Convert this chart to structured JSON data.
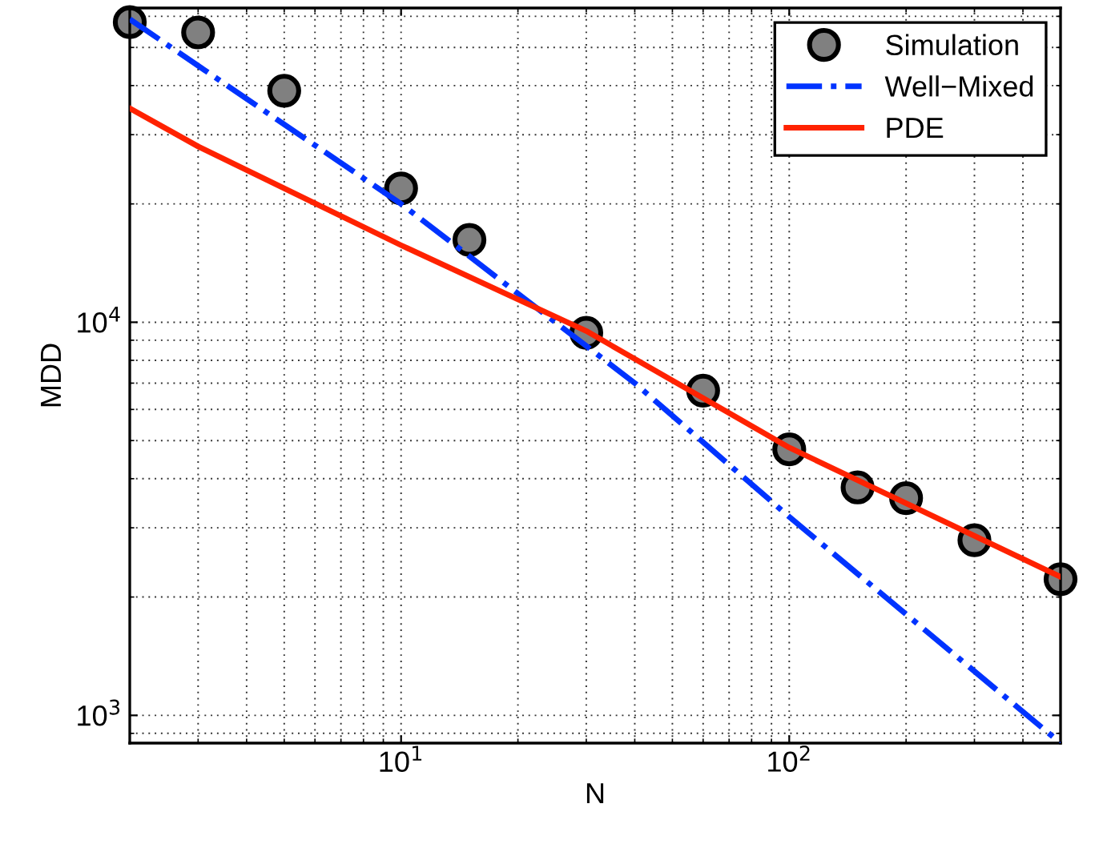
{
  "chart_data": {
    "type": "line",
    "xlabel": "N",
    "ylabel": "MDD",
    "log": "xy",
    "grid": true,
    "legend": "top right",
    "xlim": [
      2,
      500
    ],
    "ylim": [
      850,
      63000
    ],
    "xticks": [
      {
        "value": 10,
        "label": "10$^{1}$"
      },
      {
        "value": 100,
        "label": "10$^{2}$"
      }
    ],
    "yticks": [
      {
        "value": 1000,
        "label": "10$^{3}$"
      },
      {
        "value": 10000,
        "label": "10$^{4}$"
      }
    ],
    "series": [
      {
        "name": "Simulation",
        "type": "scatter",
        "marker": "circle",
        "color": "#808080",
        "x": [
          2,
          3,
          5,
          10,
          15,
          30,
          60,
          100,
          150,
          200,
          300,
          500
        ],
        "values": [
          58000,
          54600,
          38800,
          21900,
          16200,
          9400,
          6700,
          4750,
          3800,
          3570,
          2790,
          2220
        ]
      },
      {
        "name": "Well−Mixed",
        "line_style": "dashdot",
        "color": "#0033ff",
        "x": [
          2,
          10,
          40,
          100,
          500
        ],
        "values": [
          59000,
          20000,
          7000,
          3200,
          850
        ]
      },
      {
        "name": "PDE",
        "line_style": "solid",
        "color": "#ff2200",
        "x": [
          2,
          3,
          10,
          30,
          100,
          500
        ],
        "values": [
          35000,
          28000,
          15700,
          9500,
          4800,
          2250
        ]
      }
    ]
  }
}
